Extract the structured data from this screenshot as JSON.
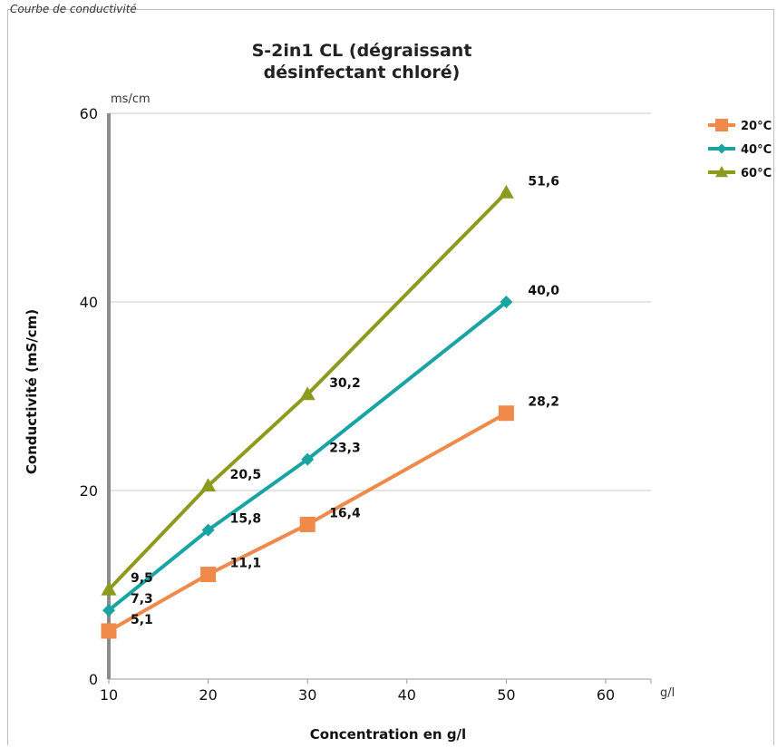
{
  "caption": "Courbe de conductivité",
  "chart_data": {
    "type": "line",
    "title_line1": "S-2in1 CL (dégraissant",
    "title_line2": "désinfectant chloré)",
    "xlabel": "Concentration en g/l",
    "ylabel": "Conductivité (mS/cm)",
    "x_unit": "g/l",
    "y_unit": "ms/cm",
    "xlim": [
      10,
      60
    ],
    "ylim": [
      0,
      60
    ],
    "x_ticks": [
      10,
      20,
      30,
      40,
      50,
      60
    ],
    "y_ticks": [
      0,
      20,
      40,
      60
    ],
    "grid": "horizontal",
    "legend_position": "right",
    "series": [
      {
        "name": "20°C",
        "color": "#f08a4b",
        "marker": "square",
        "x": [
          10,
          20,
          30,
          50
        ],
        "values": [
          5.1,
          11.1,
          16.4,
          28.2
        ],
        "labels": [
          "5,1",
          "11,1",
          "16,4",
          "28,2"
        ]
      },
      {
        "name": "40°C",
        "color": "#1aa3a3",
        "marker": "diamond",
        "x": [
          10,
          20,
          30,
          50
        ],
        "values": [
          7.3,
          15.8,
          23.3,
          40.0
        ],
        "labels": [
          "7,3",
          "15,8",
          "23,3",
          "40,0"
        ]
      },
      {
        "name": "60°C",
        "color": "#8c9a1e",
        "marker": "triangle",
        "x": [
          10,
          20,
          30,
          50
        ],
        "values": [
          9.5,
          20.5,
          30.2,
          51.6
        ],
        "labels": [
          "9,5",
          "20,5",
          "30,2",
          "51,6"
        ]
      }
    ]
  }
}
